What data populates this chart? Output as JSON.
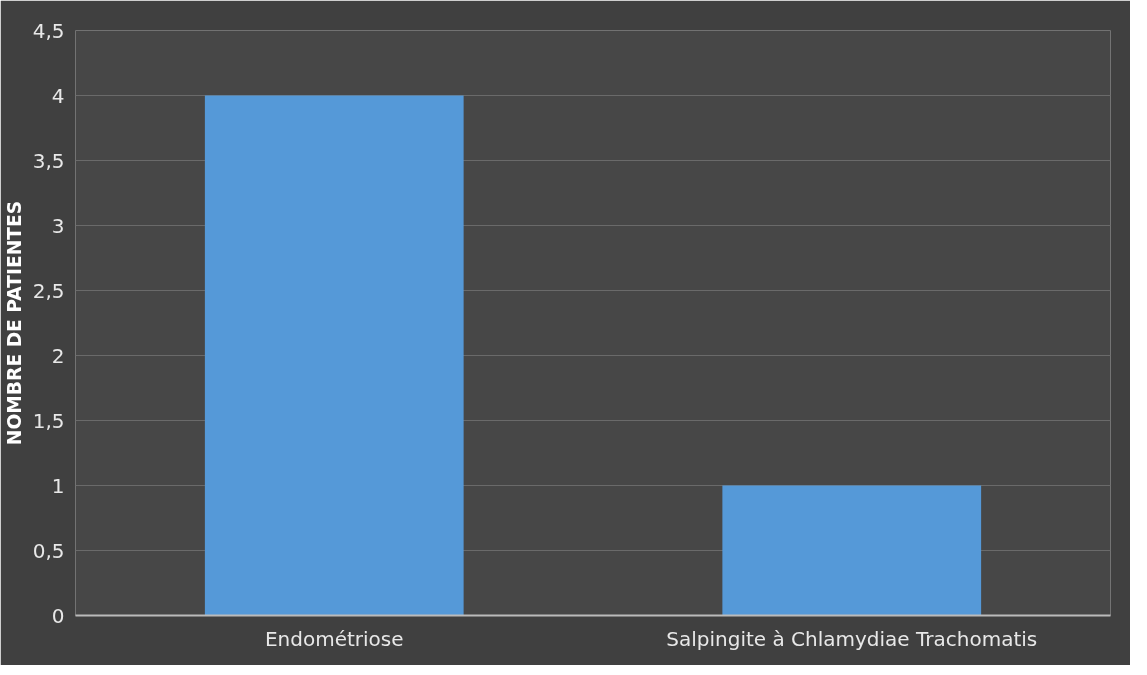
{
  "chart_data": {
    "type": "bar",
    "ylabel": "NOMBRE DE PATIENTES",
    "categories": [
      "Endométriose",
      "Salpingite à Chlamydiae Trachomatis"
    ],
    "values": [
      4,
      1
    ],
    "color": "#5599d8",
    "ylim": [
      0,
      4.5
    ],
    "yticks": [
      0,
      {
        "value": 0.5,
        "label": "0,5"
      },
      1,
      {
        "value": 1.5,
        "label": "1,5"
      },
      2,
      {
        "value": 2.5,
        "label": "2,5"
      },
      3,
      {
        "value": 3.5,
        "label": "3,5"
      },
      4,
      {
        "value": 4.5,
        "label": "4,5"
      }
    ],
    "grid": "y"
  }
}
